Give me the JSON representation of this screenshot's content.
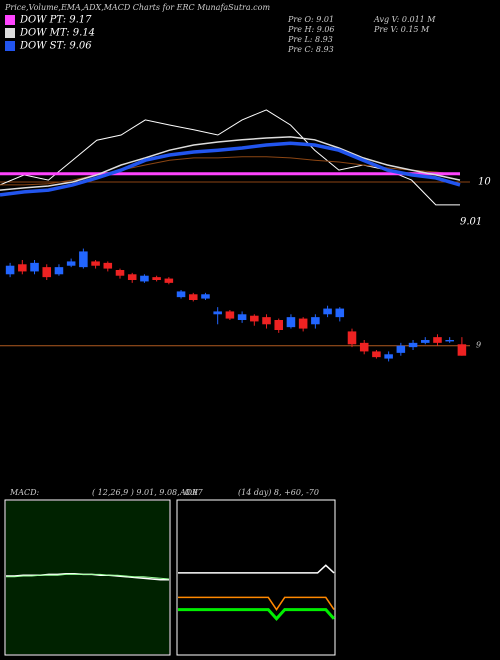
{
  "chart_data": [
    {
      "type": "line",
      "title": "Price,Volume,EMA,ADX,MACD Charts for ERC MunafaSutra.com",
      "info": [
        "Pre O: 9.01",
        "Pre H: 9.06",
        "Pre L: 8.93",
        "Pre C: 8.93",
        "Avg V: 0.011 M",
        "Pre V: 0.15 M"
      ],
      "price_label": "9.01",
      "ylim": [
        8.7,
        13.3
      ],
      "yticks": [
        10
      ],
      "series": [
        {
          "color": "#ffffff",
          "width": 1,
          "values": [
            9.92,
            10.19,
            10.05,
            10.59,
            11.13,
            11.27,
            11.68,
            11.54,
            11.41,
            11.27,
            11.68,
            11.95,
            11.54,
            10.86,
            10.32,
            10.46,
            10.32,
            10.05,
            9.38,
            9.38
          ]
        },
        {
          "color": "#8b4513",
          "width": 1,
          "values": [
            9.92,
            9.92,
            9.95,
            10.05,
            10.19,
            10.32,
            10.46,
            10.59,
            10.65,
            10.65,
            10.68,
            10.68,
            10.65,
            10.59,
            10.54,
            10.46,
            10.38,
            10.32,
            10.27,
            10.19
          ]
        },
        {
          "name": "DOW PT: 9.17",
          "color": "#ff44ff",
          "width": 3,
          "values": [
            10.22,
            10.22,
            10.22,
            10.22,
            10.22,
            10.22,
            10.22,
            10.22,
            10.22,
            10.22,
            10.22,
            10.22,
            10.22,
            10.22,
            10.22,
            10.22,
            10.22,
            10.22,
            10.22,
            10.22
          ]
        },
        {
          "name": "DOW MT: 9.14",
          "color": "#dddddd",
          "width": 1.5,
          "values": [
            9.78,
            9.84,
            9.89,
            10.0,
            10.19,
            10.46,
            10.65,
            10.86,
            11.0,
            11.08,
            11.14,
            11.19,
            11.22,
            11.14,
            10.92,
            10.65,
            10.46,
            10.32,
            10.19,
            10.05
          ]
        },
        {
          "name": "DOW ST: 9.06",
          "color": "#2255ee",
          "width": 3.5,
          "values": [
            9.65,
            9.73,
            9.78,
            9.92,
            10.11,
            10.32,
            10.59,
            10.73,
            10.81,
            10.86,
            10.92,
            11.0,
            11.05,
            11.0,
            10.86,
            10.59,
            10.32,
            10.19,
            10.11,
            9.92
          ]
        }
      ]
    },
    {
      "type": "candlestick",
      "ylim": [
        8.76,
        9.74
      ],
      "yticks": [
        9
      ],
      "up_color": "#2266ff",
      "down_color": "#ee2222",
      "open": [
        9.5,
        9.57,
        9.52,
        9.55,
        9.5,
        9.56,
        9.55,
        9.59,
        9.58,
        9.53,
        9.5,
        9.45,
        9.48,
        9.47,
        9.34,
        9.36,
        9.33,
        9.22,
        9.24,
        9.18,
        9.21,
        9.2,
        9.18,
        9.13,
        9.19,
        9.15,
        9.22,
        9.2,
        9.1,
        9.02,
        8.96,
        8.91,
        8.95,
        8.99,
        9.02,
        9.06,
        9.03,
        9.01
      ],
      "high": [
        9.58,
        9.6,
        9.6,
        9.57,
        9.57,
        9.61,
        9.68,
        9.6,
        9.59,
        9.54,
        9.51,
        9.5,
        9.49,
        9.48,
        9.39,
        9.37,
        9.37,
        9.27,
        9.25,
        9.24,
        9.22,
        9.22,
        9.19,
        9.22,
        9.2,
        9.22,
        9.28,
        9.27,
        9.12,
        9.04,
        8.97,
        8.96,
        9.02,
        9.04,
        9.06,
        9.08,
        9.06,
        9.06
      ],
      "low": [
        9.48,
        9.5,
        9.5,
        9.46,
        9.49,
        9.55,
        9.54,
        9.54,
        9.52,
        9.47,
        9.44,
        9.44,
        9.45,
        9.43,
        9.33,
        9.31,
        9.32,
        9.15,
        9.18,
        9.16,
        9.14,
        9.12,
        9.09,
        9.12,
        9.1,
        9.12,
        9.2,
        9.17,
        8.99,
        8.94,
        8.91,
        8.89,
        8.93,
        8.97,
        9.01,
        9.0,
        9.02,
        8.93
      ],
      "close": [
        9.56,
        9.52,
        9.58,
        9.48,
        9.55,
        9.59,
        9.66,
        9.56,
        9.54,
        9.49,
        9.46,
        9.49,
        9.46,
        9.44,
        9.38,
        9.32,
        9.36,
        9.24,
        9.19,
        9.22,
        9.17,
        9.15,
        9.11,
        9.2,
        9.12,
        9.2,
        9.26,
        9.26,
        9.01,
        8.96,
        8.92,
        8.94,
        9.0,
        9.02,
        9.04,
        9.02,
        9.04,
        8.93
      ]
    },
    {
      "type": "line",
      "label": "MACD:",
      "params": "( 12,26,9 ) 9.01, 9.08, -0.07",
      "ylim": [
        -1,
        1
      ],
      "background": "#002200",
      "series": [
        {
          "color": "#ffffff",
          "width": 1.5,
          "values": [
            0.02,
            0.02,
            0.03,
            0.03,
            0.03,
            0.04,
            0.04,
            0.05,
            0.05,
            0.04,
            0.04,
            0.03,
            0.03,
            0.02,
            0.01,
            0.0,
            -0.01,
            -0.02,
            -0.03,
            -0.03
          ]
        },
        {
          "color": "#99ff99",
          "width": 1,
          "values": [
            0.01,
            0.01,
            0.02,
            0.02,
            0.03,
            0.03,
            0.03,
            0.04,
            0.04,
            0.04,
            0.04,
            0.04,
            0.03,
            0.03,
            0.02,
            0.01,
            0.01,
            0.0,
            -0.01,
            -0.02
          ]
        }
      ]
    },
    {
      "type": "line",
      "label": "ADX",
      "params": "(14 day) 8, +60, -70",
      "ylim": [
        0,
        100
      ],
      "background": "#000000",
      "series": [
        {
          "color": "#ffffff",
          "width": 1.5,
          "values": [
            53,
            53,
            53,
            53,
            53,
            53,
            53,
            53,
            53,
            53,
            53,
            53,
            53,
            53,
            53,
            53,
            53,
            53,
            58,
            53
          ]
        },
        {
          "color": "#ff8800",
          "width": 1.5,
          "values": [
            37,
            37,
            37,
            37,
            37,
            37,
            37,
            37,
            37,
            37,
            37,
            37,
            29,
            37,
            37,
            37,
            37,
            37,
            37,
            29
          ]
        },
        {
          "color": "#00ee00",
          "width": 3,
          "values": [
            29,
            29,
            29,
            29,
            29,
            29,
            29,
            29,
            29,
            29,
            29,
            29,
            23,
            29,
            29,
            29,
            29,
            29,
            29,
            23
          ]
        }
      ]
    }
  ]
}
